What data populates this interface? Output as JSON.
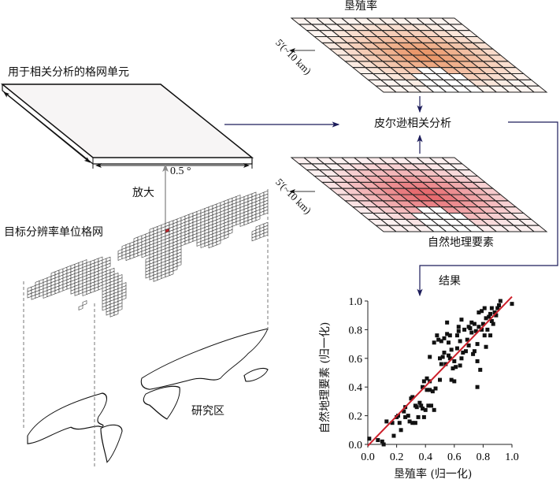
{
  "labels": {
    "grid_cell_title": "用于相关分析的格网单元",
    "cell_size": "0.5 °",
    "zoom_in": "放大",
    "target_grid": "目标分辨率单位格网",
    "study_area": "研究区",
    "reclamation_rate": "垦殖率",
    "pearson": "皮尔逊相关分析",
    "natural_factors": "自然地理要素",
    "resolution_top": "5'(~10 km)",
    "resolution_bottom": "5'(~10 km)",
    "result": "结果"
  },
  "colors": {
    "arrow": "#1c1c5a",
    "top_grid": "#e8894f",
    "bottom_grid": "#e0424a",
    "fit_line": "#cc1f2a",
    "selected_cell": "#c0282e"
  },
  "chart_data": {
    "type": "scatter",
    "xlabel": "垦殖率 (归一化)",
    "ylabel": "自然地理要素 (归一化)",
    "xlim": [
      0,
      1
    ],
    "ylim": [
      0,
      1
    ],
    "xticks": [
      "0.0",
      "0.2",
      "0.4",
      "0.6",
      "0.8",
      "1.0"
    ],
    "yticks": [
      "0.0",
      "0.2",
      "0.4",
      "0.6",
      "0.8",
      "1.0"
    ],
    "fit_line": [
      [
        0,
        -0.01
      ],
      [
        1,
        1.03
      ]
    ],
    "points": [
      [
        0.01,
        0.04
      ],
      [
        0.07,
        0.03
      ],
      [
        0.1,
        0.02
      ],
      [
        0.11,
        0.0
      ],
      [
        0.13,
        0.16
      ],
      [
        0.17,
        0.15
      ],
      [
        0.18,
        0.06
      ],
      [
        0.2,
        0.19
      ],
      [
        0.21,
        0.2
      ],
      [
        0.22,
        0.15
      ],
      [
        0.23,
        0.1
      ],
      [
        0.25,
        0.23
      ],
      [
        0.26,
        0.26
      ],
      [
        0.26,
        0.19
      ],
      [
        0.28,
        0.2
      ],
      [
        0.29,
        0.16
      ],
      [
        0.3,
        0.32
      ],
      [
        0.31,
        0.33
      ],
      [
        0.31,
        0.15
      ],
      [
        0.33,
        0.27
      ],
      [
        0.33,
        0.15
      ],
      [
        0.34,
        0.26
      ],
      [
        0.35,
        0.19
      ],
      [
        0.36,
        0.29
      ],
      [
        0.37,
        0.27
      ],
      [
        0.38,
        0.25
      ],
      [
        0.39,
        0.19
      ],
      [
        0.38,
        0.4
      ],
      [
        0.39,
        0.44
      ],
      [
        0.4,
        0.24
      ],
      [
        0.41,
        0.38
      ],
      [
        0.41,
        0.46
      ],
      [
        0.42,
        0.27
      ],
      [
        0.43,
        0.44
      ],
      [
        0.43,
        0.38
      ],
      [
        0.43,
        0.61
      ],
      [
        0.44,
        0.27
      ],
      [
        0.45,
        0.37
      ],
      [
        0.46,
        0.24
      ],
      [
        0.47,
        0.39
      ],
      [
        0.46,
        0.71
      ],
      [
        0.48,
        0.76
      ],
      [
        0.49,
        0.73
      ],
      [
        0.5,
        0.6
      ],
      [
        0.5,
        0.45
      ],
      [
        0.51,
        0.56
      ],
      [
        0.51,
        0.72
      ],
      [
        0.52,
        0.61
      ],
      [
        0.53,
        0.74
      ],
      [
        0.53,
        0.64
      ],
      [
        0.54,
        0.56
      ],
      [
        0.55,
        0.77
      ],
      [
        0.55,
        0.85
      ],
      [
        0.56,
        0.62
      ],
      [
        0.56,
        0.71
      ],
      [
        0.57,
        0.76
      ],
      [
        0.57,
        0.6
      ],
      [
        0.58,
        0.45
      ],
      [
        0.58,
        0.66
      ],
      [
        0.59,
        0.53
      ],
      [
        0.6,
        0.44
      ],
      [
        0.6,
        0.58
      ],
      [
        0.61,
        0.54
      ],
      [
        0.62,
        0.67
      ],
      [
        0.62,
        0.76
      ],
      [
        0.63,
        0.82
      ],
      [
        0.63,
        0.79
      ],
      [
        0.64,
        0.72
      ],
      [
        0.64,
        0.55
      ],
      [
        0.65,
        0.6
      ],
      [
        0.65,
        0.87
      ],
      [
        0.66,
        0.64
      ],
      [
        0.67,
        0.8
      ],
      [
        0.68,
        0.65
      ],
      [
        0.69,
        0.73
      ],
      [
        0.7,
        0.82
      ],
      [
        0.7,
        0.69
      ],
      [
        0.71,
        0.81
      ],
      [
        0.72,
        0.78
      ],
      [
        0.72,
        0.85
      ],
      [
        0.73,
        0.63
      ],
      [
        0.74,
        0.65
      ],
      [
        0.74,
        0.84
      ],
      [
        0.75,
        0.79
      ],
      [
        0.76,
        0.7
      ],
      [
        0.76,
        0.58
      ],
      [
        0.76,
        0.4
      ],
      [
        0.77,
        0.92
      ],
      [
        0.77,
        0.82
      ],
      [
        0.78,
        0.52
      ],
      [
        0.79,
        0.8
      ],
      [
        0.79,
        0.93
      ],
      [
        0.8,
        0.84
      ],
      [
        0.81,
        0.76
      ],
      [
        0.81,
        0.95
      ],
      [
        0.82,
        0.88
      ],
      [
        0.82,
        0.68
      ],
      [
        0.83,
        0.8
      ],
      [
        0.84,
        0.89
      ],
      [
        0.85,
        0.76
      ],
      [
        0.85,
        0.91
      ],
      [
        0.86,
        0.95
      ],
      [
        0.86,
        0.86
      ],
      [
        0.87,
        0.84
      ],
      [
        0.88,
        0.92
      ],
      [
        0.89,
        0.9
      ],
      [
        0.9,
        0.95
      ],
      [
        0.91,
        0.97
      ],
      [
        0.92,
        1.0
      ],
      [
        1.0,
        0.98
      ]
    ]
  }
}
